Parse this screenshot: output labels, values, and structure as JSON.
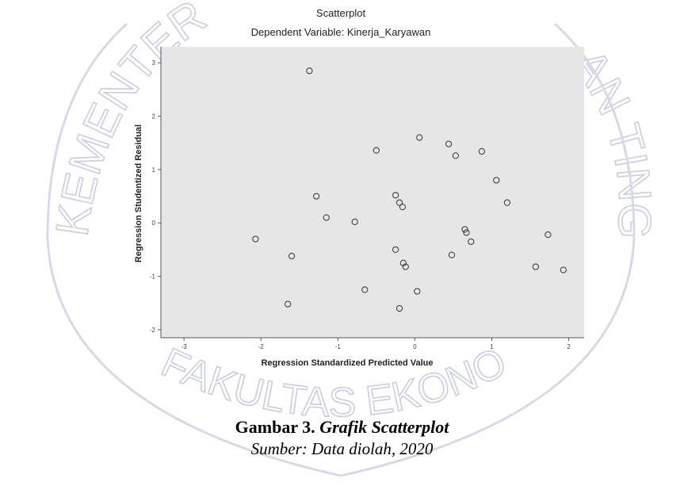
{
  "watermark": {
    "arc_left": "KEMENTERIAN",
    "arc_right": "AN TINGGI",
    "arc_bottom": "FAKULTAS EKONOMI DAN BISNIS"
  },
  "chart_data": {
    "type": "scatter",
    "title": "Scatterplot",
    "subtitle": "Dependent Variable: Kinerja_Karyawan",
    "xlabel": "Regression Standardized Predicted Value",
    "ylabel": "Regression Studentized Residual",
    "xlim": [
      -3.3,
      2.2
    ],
    "ylim": [
      -2.15,
      3.3
    ],
    "xticks": [
      -3,
      -2,
      -1,
      0,
      1,
      2
    ],
    "yticks": [
      -2,
      -1,
      0,
      1,
      2,
      3
    ],
    "grid": false,
    "background": "#e6e6e6",
    "points": [
      {
        "x": -1.37,
        "y": 2.85
      },
      {
        "x": 0.06,
        "y": 1.6
      },
      {
        "x": 0.44,
        "y": 1.48
      },
      {
        "x": -0.5,
        "y": 1.36
      },
      {
        "x": 0.87,
        "y": 1.34
      },
      {
        "x": 0.53,
        "y": 1.26
      },
      {
        "x": 1.06,
        "y": 0.8
      },
      {
        "x": -1.28,
        "y": 0.5
      },
      {
        "x": -0.25,
        "y": 0.52
      },
      {
        "x": -0.2,
        "y": 0.38
      },
      {
        "x": -0.16,
        "y": 0.3
      },
      {
        "x": 1.2,
        "y": 0.38
      },
      {
        "x": -1.15,
        "y": 0.1
      },
      {
        "x": -0.78,
        "y": 0.02
      },
      {
        "x": 0.65,
        "y": -0.12
      },
      {
        "x": 0.67,
        "y": -0.18
      },
      {
        "x": 0.73,
        "y": -0.35
      },
      {
        "x": 1.73,
        "y": -0.22
      },
      {
        "x": -2.07,
        "y": -0.3
      },
      {
        "x": -0.25,
        "y": -0.5
      },
      {
        "x": 0.48,
        "y": -0.6
      },
      {
        "x": -1.6,
        "y": -0.62
      },
      {
        "x": -0.15,
        "y": -0.75
      },
      {
        "x": -0.12,
        "y": -0.82
      },
      {
        "x": 1.57,
        "y": -0.82
      },
      {
        "x": 1.93,
        "y": -0.88
      },
      {
        "x": -0.65,
        "y": -1.25
      },
      {
        "x": 0.03,
        "y": -1.28
      },
      {
        "x": -1.65,
        "y": -1.52
      },
      {
        "x": -0.2,
        "y": -1.6
      }
    ]
  },
  "caption": {
    "label": "Gambar 3.",
    "title": "Grafik Scatterplot",
    "source": "Sumber: Data diolah, 2020"
  }
}
